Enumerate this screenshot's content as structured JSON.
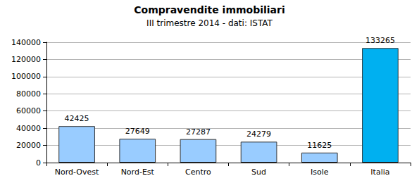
{
  "chart_data": {
    "type": "bar",
    "title": "Compravendite immobiliari",
    "subtitle": "III trimestre 2014 - dati: ISTAT",
    "categories": [
      "Nord-Ovest",
      "Nord-Est",
      "Centro",
      "Sud",
      "Isole",
      "Italia"
    ],
    "values": [
      42425,
      27649,
      27287,
      24279,
      11625,
      133265
    ],
    "colors": [
      "#99ccff",
      "#99ccff",
      "#99ccff",
      "#99ccff",
      "#99ccff",
      "#00b0f0"
    ],
    "ylim": [
      0,
      140000
    ],
    "yticks": [
      0,
      20000,
      40000,
      60000,
      80000,
      100000,
      120000,
      140000
    ],
    "grid": true,
    "data_labels": true
  }
}
